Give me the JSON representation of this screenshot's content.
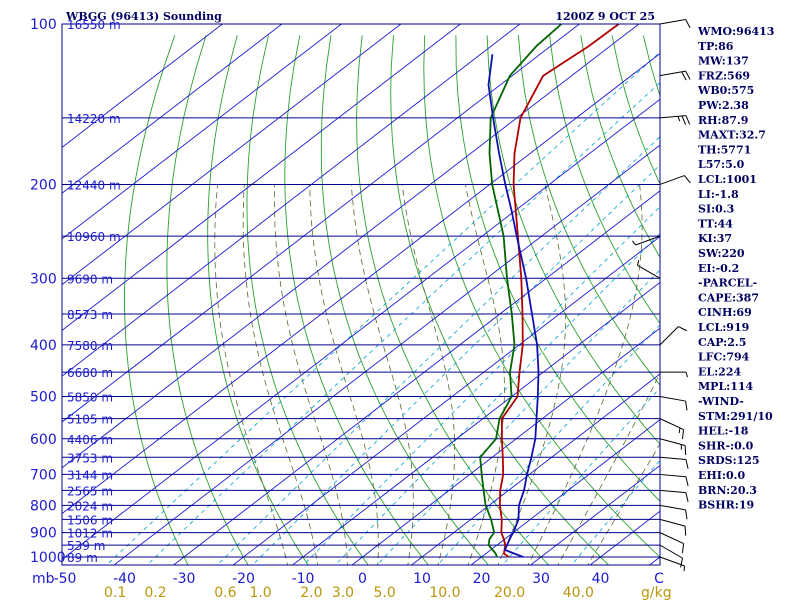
{
  "header": {
    "station": "WBGG (96413) Sounding",
    "time": "1200Z  9 OCT 25"
  },
  "colors": {
    "isobar": "#00008b",
    "isotherm": "#1a1ad0",
    "dry_adiabat": "#2ca02c",
    "moist_adiabat": "#556b2f",
    "mixing_ratio": "#00a0d0",
    "temperature": "#b00000",
    "dewpoint": "#006400",
    "parcel": "#1010b0",
    "wind": "#000000",
    "tick_text": "#1a1ad0",
    "index_text": "#000060",
    "mix_text": "#b8960b"
  },
  "chart_data": {
    "type": "line",
    "title": "WBGG (96413) Sounding",
    "subtitle": "1200Z  9 OCT 25",
    "xlabel": "C",
    "ylabel": "mb",
    "xlim": [
      -50,
      50
    ],
    "ylim": [
      1000,
      100
    ],
    "temp_ticks": [
      -50,
      -40,
      -30,
      -20,
      -10,
      0,
      10,
      20,
      30,
      40
    ],
    "temp_tick_labels": [
      "-50",
      "-40",
      "-30",
      "-20",
      "-10",
      "0",
      "10",
      "20",
      "30",
      "40"
    ],
    "pressure_labels": [
      {
        "p": 100,
        "label": "100"
      },
      {
        "p": 200,
        "label": "200"
      },
      {
        "p": 300,
        "label": "300"
      },
      {
        "p": 400,
        "label": "400"
      },
      {
        "p": 500,
        "label": "500"
      },
      {
        "p": 600,
        "label": "600"
      },
      {
        "p": 700,
        "label": "700"
      },
      {
        "p": 800,
        "label": "800"
      },
      {
        "p": 900,
        "label": "900"
      },
      {
        "p": 1000,
        "label": "1000"
      }
    ],
    "height_labels": [
      {
        "p": 100,
        "label": "16550 m"
      },
      {
        "p": 150,
        "label": "14220 m"
      },
      {
        "p": 200,
        "label": "12440 m"
      },
      {
        "p": 250,
        "label": "10960 m"
      },
      {
        "p": 300,
        "label": "9690 m"
      },
      {
        "p": 350,
        "label": "8573 m"
      },
      {
        "p": 400,
        "label": "7580 m"
      },
      {
        "p": 450,
        "label": "6680 m"
      },
      {
        "p": 500,
        "label": "5850 m"
      },
      {
        "p": 550,
        "label": "5105 m"
      },
      {
        "p": 600,
        "label": "4406 m"
      },
      {
        "p": 650,
        "label": "3753 m"
      },
      {
        "p": 700,
        "label": "3144 m"
      },
      {
        "p": 750,
        "label": "2565 m"
      },
      {
        "p": 800,
        "label": "2024 m"
      },
      {
        "p": 850,
        "label": "1506 m"
      },
      {
        "p": 900,
        "label": "1012 m"
      },
      {
        "p": 950,
        "label": "539 m"
      },
      {
        "p": 1000,
        "label": "89 m"
      }
    ],
    "mixing_ratio_labels": [
      {
        "w": 0.1,
        "label": "0.1"
      },
      {
        "w": 0.2,
        "label": "0.2"
      },
      {
        "w": 0.6,
        "label": "0.6"
      },
      {
        "w": 1.0,
        "label": "1.0"
      },
      {
        "w": 2.0,
        "label": "2.0"
      },
      {
        "w": 3.0,
        "label": "3.0"
      },
      {
        "w": 5.0,
        "label": "5.0"
      },
      {
        "w": 10.0,
        "label": "10.0"
      },
      {
        "w": 20.0,
        "label": "20.0"
      },
      {
        "w": 40.0,
        "label": "40.0"
      }
    ],
    "mixing_ratio_unit": "g/kg",
    "series": [
      {
        "name": "Temperature",
        "p": [
          1000,
          985,
          950,
          925,
          900,
          850,
          800,
          750,
          700,
          650,
          600,
          550,
          500,
          450,
          400,
          350,
          300,
          250,
          200,
          175,
          150,
          125,
          110,
          100
        ],
        "t": [
          24.6,
          23.0,
          21.4,
          19.8,
          18.0,
          15.2,
          11.8,
          8.6,
          5.6,
          1.8,
          -2.4,
          -6.8,
          -9.0,
          -14.0,
          -19.4,
          -26.2,
          -34.2,
          -44.0,
          -56.0,
          -62.6,
          -69.4,
          -74.8,
          -73.6,
          -73.4
        ]
      },
      {
        "name": "Dewpoint",
        "p": [
          1000,
          985,
          950,
          925,
          900,
          850,
          800,
          750,
          700,
          650,
          600,
          550,
          500,
          450,
          400,
          350,
          300,
          250,
          200,
          175,
          150,
          125,
          110,
          100
        ],
        "t": [
          22.6,
          21.6,
          18.6,
          17.4,
          16.8,
          13.4,
          9.4,
          5.8,
          2.0,
          -2.0,
          -3.4,
          -7.2,
          -10.0,
          -15.6,
          -20.8,
          -28.0,
          -36.6,
          -46.4,
          -59.6,
          -66.8,
          -74.4,
          -80.4,
          -82.4,
          -83.0
        ]
      },
      {
        "name": "Parcel",
        "p": [
          1000,
          970,
          919,
          900,
          850,
          800,
          750,
          700,
          650,
          600,
          550,
          500,
          450,
          400,
          350,
          300,
          250,
          224,
          200,
          175,
          150,
          130,
          114
        ],
        "t": [
          27.0,
          22.4,
          20.6,
          20.0,
          18.0,
          15.0,
          12.6,
          9.6,
          6.6,
          3.2,
          -1.0,
          -5.6,
          -10.8,
          -17.0,
          -24.6,
          -33.4,
          -44.2,
          -50.6,
          -57.4,
          -65.2,
          -74.0,
          -82.0,
          -88.0
        ]
      }
    ],
    "wind": [
      {
        "p": 1000,
        "dir": 110,
        "spd": 5
      },
      {
        "p": 950,
        "dir": 120,
        "spd": 10
      },
      {
        "p": 900,
        "dir": 115,
        "spd": 10
      },
      {
        "p": 850,
        "dir": 105,
        "spd": 10
      },
      {
        "p": 800,
        "dir": 100,
        "spd": 10
      },
      {
        "p": 750,
        "dir": 95,
        "spd": 10
      },
      {
        "p": 700,
        "dir": 95,
        "spd": 10
      },
      {
        "p": 650,
        "dir": 95,
        "spd": 10
      },
      {
        "p": 600,
        "dir": 105,
        "spd": 15
      },
      {
        "p": 550,
        "dir": 115,
        "spd": 15
      },
      {
        "p": 500,
        "dir": 100,
        "spd": 10
      },
      {
        "p": 450,
        "dir": 90,
        "spd": 5
      },
      {
        "p": 400,
        "dir": 45,
        "spd": 10
      },
      {
        "p": 300,
        "dir": 300,
        "spd": 5
      },
      {
        "p": 250,
        "dir": 250,
        "spd": 5
      },
      {
        "p": 200,
        "dir": 70,
        "spd": 10
      },
      {
        "p": 150,
        "dir": 85,
        "spd": 25
      },
      {
        "p": 125,
        "dir": 80,
        "spd": 20
      },
      {
        "p": 100,
        "dir": 80,
        "spd": 10
      }
    ]
  },
  "indices": [
    "WMO:96413",
    "TP:86",
    "MW:137",
    "FRZ:569",
    "WB0:575",
    "PW:2.38",
    "RH:87.9",
    "MAXT:32.7",
    "TH:5771",
    "L57:5.0",
    "LCL:1001",
    "LI:-1.8",
    "SI:0.3",
    "TT:44",
    "KI:37",
    "SW:220",
    "EI:-0.2",
    "-PARCEL-",
    "CAPE:387",
    "CINH:69",
    "LCL:919",
    "CAP:2.5",
    "LFC:794",
    "EL:224",
    "MPL:114",
    "-WIND-",
    "STM:291/10",
    "HEL:-18",
    "SHR-:0.0",
    "SRDS:125",
    "EHI:0.0",
    "BRN:20.3",
    "BSHR:19"
  ]
}
